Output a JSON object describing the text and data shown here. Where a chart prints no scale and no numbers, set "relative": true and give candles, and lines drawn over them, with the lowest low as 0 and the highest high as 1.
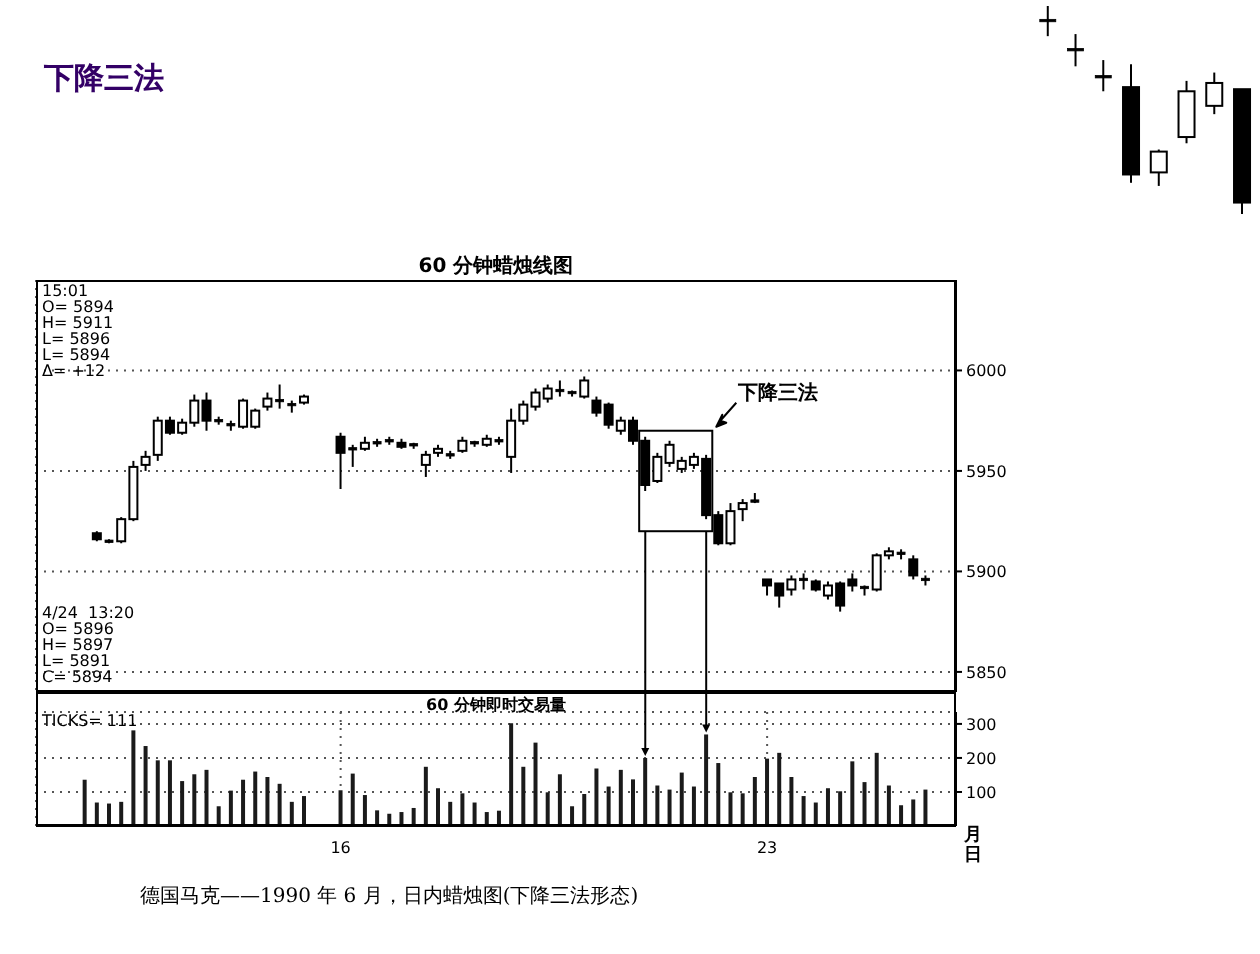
{
  "chart_data": [
    {
      "type": "candlestick",
      "title": "下降三法",
      "subtitle": "60 分钟蜡烛线图",
      "categories": [
        null,
        null,
        null,
        null,
        null,
        null,
        null,
        null,
        null,
        null,
        null,
        null,
        null,
        null,
        null,
        null,
        null,
        null,
        null,
        null,
        null,
        "16",
        null,
        null,
        null,
        null,
        null,
        null,
        null,
        null,
        null,
        null,
        null,
        null,
        null,
        null,
        null,
        null,
        null,
        null,
        null,
        null,
        null,
        null,
        null,
        null,
        null,
        null,
        null,
        null,
        null,
        null,
        null,
        null,
        null,
        null,
        "23",
        null,
        null,
        null,
        null,
        null,
        null,
        null,
        null,
        null,
        null,
        null,
        null,
        null
      ],
      "ohlc": [
        null,
        [
          5919,
          5920,
          5915,
          5916
        ],
        [
          5915,
          5916,
          5914,
          5915
        ],
        [
          5915,
          5927,
          5914,
          5926
        ],
        [
          5926,
          5955,
          5925,
          5952
        ],
        [
          5953,
          5960,
          5950,
          5957
        ],
        [
          5958,
          5977,
          5955,
          5975
        ],
        [
          5975,
          5977,
          5968,
          5969
        ],
        [
          5969,
          5976,
          5968,
          5974
        ],
        [
          5974,
          5988,
          5972,
          5985
        ],
        [
          5985,
          5989,
          5970,
          5975
        ],
        [
          5975,
          5977,
          5973,
          5975
        ],
        [
          5973,
          5975,
          5970,
          5973
        ],
        [
          5972,
          5986,
          5971,
          5985
        ],
        [
          5972,
          5981,
          5971,
          5980
        ],
        [
          5982,
          5989,
          5980,
          5986
        ],
        [
          5985,
          5993,
          5981,
          5984
        ],
        [
          5983,
          5985,
          5979,
          5983
        ],
        [
          5984,
          5988,
          5983,
          5987
        ],
        null,
        null,
        [
          5967,
          5969,
          5941,
          5959
        ],
        [
          5961,
          5963,
          5952,
          5961
        ],
        [
          5961,
          5967,
          5960,
          5964
        ],
        [
          5964,
          5966,
          5962,
          5964
        ],
        [
          5965,
          5967,
          5963,
          5965
        ],
        [
          5964,
          5966,
          5961,
          5962
        ],
        [
          5963,
          5964,
          5961,
          5963
        ],
        [
          5953,
          5960,
          5947,
          5958
        ],
        [
          5959,
          5963,
          5957,
          5961
        ],
        [
          5958,
          5960,
          5956,
          5958
        ],
        [
          5960,
          5967,
          5959,
          5965
        ],
        [
          5964,
          5965,
          5962,
          5964
        ],
        [
          5963,
          5968,
          5962,
          5966
        ],
        [
          5965,
          5967,
          5963,
          5965
        ],
        [
          5957,
          5981,
          5949,
          5975
        ],
        [
          5975,
          5985,
          5973,
          5983
        ],
        [
          5982,
          5991,
          5980,
          5989
        ],
        [
          5986,
          5993,
          5984,
          5991
        ],
        [
          5990,
          5995,
          5987,
          5990
        ],
        [
          5989,
          5990,
          5987,
          5989
        ],
        [
          5987,
          5997,
          5986,
          5995
        ],
        [
          5985,
          5987,
          5977,
          5979
        ],
        [
          5983,
          5984,
          5971,
          5973
        ],
        [
          5970,
          5977,
          5968,
          5975
        ],
        [
          5975,
          5977,
          5963,
          5965
        ],
        [
          5965,
          5967,
          5940,
          5943
        ],
        [
          5945,
          5959,
          5944,
          5957
        ],
        [
          5954,
          5965,
          5952,
          5963
        ],
        [
          5951,
          5957,
          5949,
          5955
        ],
        [
          5953,
          5959,
          5951,
          5957
        ],
        [
          5956,
          5958,
          5926,
          5928
        ],
        [
          5928,
          5930,
          5913,
          5914
        ],
        [
          5914,
          5934,
          5913,
          5930
        ],
        [
          5931,
          5936,
          5925,
          5934
        ],
        [
          5935,
          5939,
          5934,
          5934
        ],
        [
          5896,
          5896,
          5888,
          5893
        ],
        [
          5894,
          5894,
          5882,
          5888
        ],
        [
          5891,
          5898,
          5888,
          5896
        ],
        [
          5896,
          5899,
          5891,
          5896
        ],
        [
          5895,
          5896,
          5890,
          5891
        ],
        [
          5888,
          5895,
          5886,
          5893
        ],
        [
          5894,
          5895,
          5880,
          5883
        ],
        [
          5896,
          5899,
          5890,
          5893
        ],
        [
          5892,
          5893,
          5888,
          5892
        ],
        [
          5891,
          5909,
          5890,
          5908
        ],
        [
          5908,
          5912,
          5906,
          5910
        ],
        [
          5909,
          5911,
          5906,
          5909
        ],
        [
          5906,
          5908,
          5896,
          5898
        ],
        [
          5896,
          5898,
          5893,
          5896
        ]
      ],
      "ylim": [
        5840,
        6045
      ],
      "yticks": [
        5850,
        5900,
        5950,
        6000
      ],
      "grid": true,
      "tick_labels": "y",
      "annotations": [
        "15:01",
        "O= 5894",
        "H= 5911",
        "L= 5896",
        "L= 5894",
        "Δ= +12",
        "4/24  13:20",
        "O= 5896",
        "H= 5897",
        "L= 5891",
        "C= 5894",
        "下降三法"
      ]
    },
    {
      "type": "bar",
      "title": "60 分钟即时交易量",
      "xlabel": "月日",
      "color": "#1a1a1a",
      "categories": [
        null,
        null,
        null,
        null,
        null,
        null,
        null,
        null,
        null,
        null,
        null,
        null,
        null,
        null,
        null,
        null,
        null,
        null,
        null,
        null,
        null,
        "16",
        null,
        null,
        null,
        null,
        null,
        null,
        null,
        null,
        null,
        null,
        null,
        null,
        null,
        null,
        null,
        null,
        null,
        null,
        null,
        null,
        null,
        null,
        null,
        null,
        null,
        null,
        null,
        null,
        null,
        null,
        null,
        null,
        null,
        null,
        "23",
        null,
        null,
        null,
        null,
        null,
        null,
        null,
        null,
        null,
        null,
        null,
        null,
        null
      ],
      "values": [
        136,
        69,
        66,
        71,
        281,
        235,
        193,
        193,
        132,
        152,
        165,
        58,
        104,
        136,
        160,
        144,
        124,
        71,
        88,
        null,
        null,
        105,
        154,
        91,
        46,
        36,
        41,
        53,
        174,
        111,
        71,
        96,
        69,
        41,
        45,
        302,
        174,
        245,
        99,
        152,
        58,
        94,
        169,
        116,
        165,
        137,
        200,
        119,
        107,
        157,
        116,
        269,
        185,
        99,
        96,
        144,
        198,
        215,
        144,
        88,
        69,
        111,
        102,
        190,
        129,
        215,
        119,
        61,
        78,
        107
      ],
      "ylim": [
        0,
        335
      ],
      "yticks": [
        100,
        200,
        300
      ],
      "grid": true,
      "annotations": [
        "TICKS= 111",
        "德国马克——1990 年 6 月，日内蜡烛图(下降三法形态)"
      ]
    },
    {
      "type": "candlestick",
      "relative": true,
      "categories": [
        null,
        null,
        null,
        null,
        null,
        null,
        null,
        null
      ],
      "ohlc": [
        [
          0.93,
          1,
          0.855,
          0.93
        ],
        [
          0.79,
          0.865,
          0.71,
          0.79
        ],
        [
          0.66,
          0.74,
          0.59,
          0.66
        ],
        [
          0.61,
          0.72,
          0.15,
          0.19
        ],
        [
          0.2,
          0.31,
          0.135,
          0.3
        ],
        [
          0.37,
          0.64,
          0.34,
          0.59
        ],
        [
          0.52,
          0.68,
          0.48,
          0.63
        ],
        [
          0.6,
          0.6,
          0,
          0.055
        ]
      ]
    }
  ]
}
